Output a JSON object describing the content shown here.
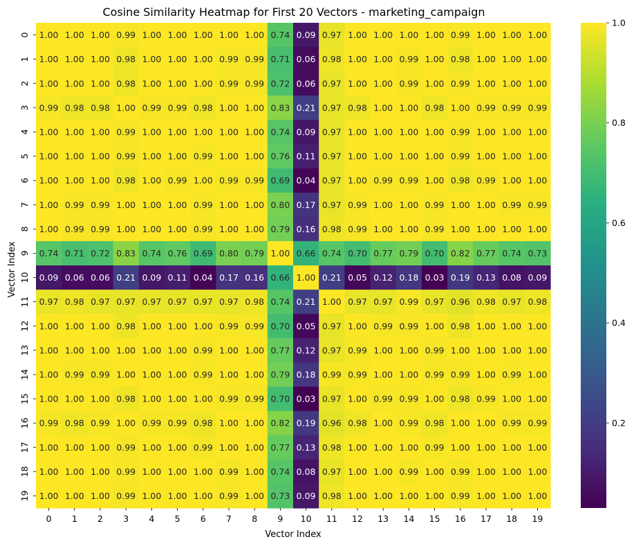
{
  "chart_data": {
    "type": "heatmap",
    "title": "Cosine Similarity Heatmap for First 20 Vectors - marketing_campaign",
    "xlabel": "Vector Index",
    "ylabel": "Vector Index",
    "x_categories": [
      "0",
      "1",
      "2",
      "3",
      "4",
      "5",
      "6",
      "7",
      "8",
      "9",
      "10",
      "11",
      "12",
      "13",
      "14",
      "15",
      "16",
      "17",
      "18",
      "19"
    ],
    "y_categories": [
      "0",
      "1",
      "2",
      "3",
      "4",
      "5",
      "6",
      "7",
      "8",
      "9",
      "10",
      "11",
      "12",
      "13",
      "14",
      "15",
      "16",
      "17",
      "18",
      "19"
    ],
    "colormap": "viridis",
    "value_range": [
      0.03,
      1.0
    ],
    "colorbar_ticks": [
      "0.2",
      "0.4",
      "0.6",
      "0.8",
      "1.0"
    ],
    "colorbar_tick_values": [
      0.2,
      0.4,
      0.6,
      0.8,
      1.0
    ],
    "annotation_format": "2 decimals",
    "values": [
      [
        1.0,
        1.0,
        1.0,
        0.99,
        1.0,
        1.0,
        1.0,
        1.0,
        1.0,
        0.74,
        0.09,
        0.97,
        1.0,
        1.0,
        1.0,
        1.0,
        0.99,
        1.0,
        1.0,
        1.0
      ],
      [
        1.0,
        1.0,
        1.0,
        0.98,
        1.0,
        1.0,
        1.0,
        0.99,
        0.99,
        0.71,
        0.06,
        0.98,
        1.0,
        1.0,
        0.99,
        1.0,
        0.98,
        1.0,
        1.0,
        1.0
      ],
      [
        1.0,
        1.0,
        1.0,
        0.98,
        1.0,
        1.0,
        1.0,
        0.99,
        0.99,
        0.72,
        0.06,
        0.97,
        1.0,
        1.0,
        0.99,
        1.0,
        0.99,
        1.0,
        1.0,
        1.0
      ],
      [
        0.99,
        0.98,
        0.98,
        1.0,
        0.99,
        0.99,
        0.98,
        1.0,
        1.0,
        0.83,
        0.21,
        0.97,
        0.98,
        1.0,
        1.0,
        0.98,
        1.0,
        0.99,
        0.99,
        0.99
      ],
      [
        1.0,
        1.0,
        1.0,
        0.99,
        1.0,
        1.0,
        1.0,
        1.0,
        1.0,
        0.74,
        0.09,
        0.97,
        1.0,
        1.0,
        1.0,
        1.0,
        0.99,
        1.0,
        1.0,
        1.0
      ],
      [
        1.0,
        1.0,
        1.0,
        0.99,
        1.0,
        1.0,
        0.99,
        1.0,
        1.0,
        0.76,
        0.11,
        0.97,
        1.0,
        1.0,
        1.0,
        1.0,
        0.99,
        1.0,
        1.0,
        1.0
      ],
      [
        1.0,
        1.0,
        1.0,
        0.98,
        1.0,
        0.99,
        1.0,
        0.99,
        0.99,
        0.69,
        0.04,
        0.97,
        1.0,
        0.99,
        0.99,
        1.0,
        0.98,
        0.99,
        1.0,
        1.0
      ],
      [
        1.0,
        0.99,
        0.99,
        1.0,
        1.0,
        1.0,
        0.99,
        1.0,
        1.0,
        0.8,
        0.17,
        0.97,
        0.99,
        1.0,
        1.0,
        0.99,
        1.0,
        1.0,
        0.99,
        0.99
      ],
      [
        1.0,
        0.99,
        0.99,
        1.0,
        1.0,
        1.0,
        0.99,
        1.0,
        1.0,
        0.79,
        0.16,
        0.98,
        0.99,
        1.0,
        1.0,
        0.99,
        1.0,
        1.0,
        1.0,
        1.0
      ],
      [
        0.74,
        0.71,
        0.72,
        0.83,
        0.74,
        0.76,
        0.69,
        0.8,
        0.79,
        1.0,
        0.66,
        0.74,
        0.7,
        0.77,
        0.79,
        0.7,
        0.82,
        0.77,
        0.74,
        0.73
      ],
      [
        0.09,
        0.06,
        0.06,
        0.21,
        0.09,
        0.11,
        0.04,
        0.17,
        0.16,
        0.66,
        1.0,
        0.21,
        0.05,
        0.12,
        0.18,
        0.03,
        0.19,
        0.13,
        0.08,
        0.09
      ],
      [
        0.97,
        0.98,
        0.97,
        0.97,
        0.97,
        0.97,
        0.97,
        0.97,
        0.98,
        0.74,
        0.21,
        1.0,
        0.97,
        0.97,
        0.99,
        0.97,
        0.96,
        0.98,
        0.97,
        0.98
      ],
      [
        1.0,
        1.0,
        1.0,
        0.98,
        1.0,
        1.0,
        1.0,
        0.99,
        0.99,
        0.7,
        0.05,
        0.97,
        1.0,
        0.99,
        0.99,
        1.0,
        0.98,
        1.0,
        1.0,
        1.0
      ],
      [
        1.0,
        1.0,
        1.0,
        1.0,
        1.0,
        1.0,
        0.99,
        1.0,
        1.0,
        0.77,
        0.12,
        0.97,
        0.99,
        1.0,
        1.0,
        0.99,
        1.0,
        1.0,
        1.0,
        1.0
      ],
      [
        1.0,
        0.99,
        0.99,
        1.0,
        1.0,
        1.0,
        0.99,
        1.0,
        1.0,
        0.79,
        0.18,
        0.99,
        0.99,
        1.0,
        1.0,
        0.99,
        0.99,
        1.0,
        0.99,
        1.0
      ],
      [
        1.0,
        1.0,
        1.0,
        0.98,
        1.0,
        1.0,
        1.0,
        0.99,
        0.99,
        0.7,
        0.03,
        0.97,
        1.0,
        0.99,
        0.99,
        1.0,
        0.98,
        0.99,
        1.0,
        1.0
      ],
      [
        0.99,
        0.98,
        0.99,
        1.0,
        0.99,
        0.99,
        0.98,
        1.0,
        1.0,
        0.82,
        0.19,
        0.96,
        0.98,
        1.0,
        0.99,
        0.98,
        1.0,
        1.0,
        0.99,
        0.99
      ],
      [
        1.0,
        1.0,
        1.0,
        0.99,
        1.0,
        1.0,
        0.99,
        1.0,
        1.0,
        0.77,
        0.13,
        0.98,
        1.0,
        1.0,
        1.0,
        0.99,
        1.0,
        1.0,
        1.0,
        1.0
      ],
      [
        1.0,
        1.0,
        1.0,
        0.99,
        1.0,
        1.0,
        1.0,
        0.99,
        1.0,
        0.74,
        0.08,
        0.97,
        1.0,
        1.0,
        0.99,
        1.0,
        0.99,
        1.0,
        1.0,
        1.0
      ],
      [
        1.0,
        1.0,
        1.0,
        0.99,
        1.0,
        1.0,
        1.0,
        0.99,
        1.0,
        0.73,
        0.09,
        0.98,
        1.0,
        1.0,
        1.0,
        1.0,
        0.99,
        1.0,
        1.0,
        1.0
      ]
    ]
  }
}
